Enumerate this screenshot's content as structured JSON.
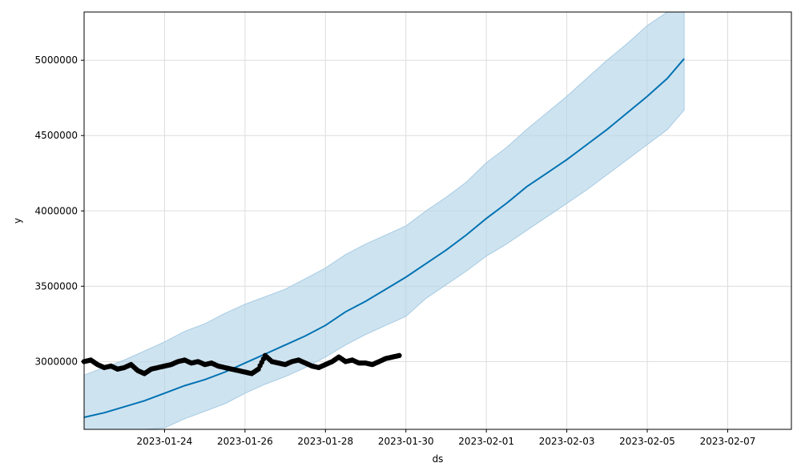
{
  "chart_data": {
    "type": "line",
    "title": "",
    "xlabel": "ds",
    "ylabel": "y",
    "x_axis_type": "date",
    "xlim": [
      "2023-01-22T00:00",
      "2023-02-08T14:00"
    ],
    "ylim": [
      2550000,
      5320000
    ],
    "grid": true,
    "legend": "none",
    "x_ticks": [
      "2023-01-24",
      "2023-01-26",
      "2023-01-28",
      "2023-01-30",
      "2023-02-01",
      "2023-02-03",
      "2023-02-05",
      "2023-02-07"
    ],
    "y_ticks": [
      3000000,
      3500000,
      4000000,
      4500000,
      5000000
    ],
    "colors": {
      "forecast_line": "#0072B2",
      "uncertainty_band": "#b3d4e8",
      "observed_points": "#000000",
      "grid": "#dddddd"
    },
    "series": [
      {
        "role": "forecast",
        "x": [
          "2023-01-22T00:00",
          "2023-01-22T12:00",
          "2023-01-23T00:00",
          "2023-01-23T12:00",
          "2023-01-24T00:00",
          "2023-01-24T12:00",
          "2023-01-25T00:00",
          "2023-01-25T12:00",
          "2023-01-26T00:00",
          "2023-01-26T12:00",
          "2023-01-27T00:00",
          "2023-01-27T12:00",
          "2023-01-28T00:00",
          "2023-01-28T12:00",
          "2023-01-29T00:00",
          "2023-01-29T12:00",
          "2023-01-30T00:00",
          "2023-01-30T12:00",
          "2023-01-31T00:00",
          "2023-01-31T12:00",
          "2023-02-01T00:00",
          "2023-02-01T12:00",
          "2023-02-02T00:00",
          "2023-02-02T12:00",
          "2023-02-03T00:00",
          "2023-02-03T12:00",
          "2023-02-04T00:00",
          "2023-02-04T12:00",
          "2023-02-05T00:00",
          "2023-02-05T12:00",
          "2023-02-05T22:00"
        ],
        "values": [
          2630000,
          2660000,
          2700000,
          2740000,
          2790000,
          2840000,
          2880000,
          2930000,
          2990000,
          3050000,
          3110000,
          3170000,
          3240000,
          3330000,
          3400000,
          3480000,
          3560000,
          3650000,
          3740000,
          3840000,
          3950000,
          4050000,
          4160000,
          4250000,
          4340000,
          4440000,
          4540000,
          4650000,
          4760000,
          4880000,
          5010000
        ],
        "lower": [
          2330000,
          2390000,
          2450000,
          2510000,
          2560000,
          2620000,
          2670000,
          2720000,
          2790000,
          2850000,
          2900000,
          2960000,
          3030000,
          3110000,
          3180000,
          3240000,
          3300000,
          3420000,
          3510000,
          3600000,
          3700000,
          3780000,
          3870000,
          3960000,
          4050000,
          4140000,
          4240000,
          4340000,
          4440000,
          4540000,
          4670000
        ],
        "upper": [
          2910000,
          2960000,
          3010000,
          3070000,
          3130000,
          3200000,
          3250000,
          3320000,
          3380000,
          3430000,
          3480000,
          3550000,
          3620000,
          3710000,
          3780000,
          3840000,
          3900000,
          4000000,
          4090000,
          4190000,
          4320000,
          4420000,
          4540000,
          4650000,
          4760000,
          4880000,
          5000000,
          5110000,
          5230000,
          5350000,
          5500000
        ]
      },
      {
        "role": "observed",
        "x": [
          "2023-01-22T00:00",
          "2023-01-22T04:00",
          "2023-01-22T08:00",
          "2023-01-22T12:00",
          "2023-01-22T16:00",
          "2023-01-22T20:00",
          "2023-01-23T00:00",
          "2023-01-23T04:00",
          "2023-01-23T08:00",
          "2023-01-23T12:00",
          "2023-01-23T16:00",
          "2023-01-23T20:00",
          "2023-01-24T00:00",
          "2023-01-24T04:00",
          "2023-01-24T08:00",
          "2023-01-24T12:00",
          "2023-01-24T16:00",
          "2023-01-24T20:00",
          "2023-01-25T00:00",
          "2023-01-25T04:00",
          "2023-01-25T08:00",
          "2023-01-25T12:00",
          "2023-01-25T16:00",
          "2023-01-25T20:00",
          "2023-01-26T00:00",
          "2023-01-26T04:00",
          "2023-01-26T08:00",
          "2023-01-26T12:00",
          "2023-01-26T16:00",
          "2023-01-26T20:00",
          "2023-01-27T00:00",
          "2023-01-27T04:00",
          "2023-01-27T08:00",
          "2023-01-27T12:00",
          "2023-01-27T16:00",
          "2023-01-27T20:00",
          "2023-01-28T00:00",
          "2023-01-28T04:00",
          "2023-01-28T08:00",
          "2023-01-28T12:00",
          "2023-01-28T16:00",
          "2023-01-28T20:00",
          "2023-01-29T00:00",
          "2023-01-29T04:00",
          "2023-01-29T08:00",
          "2023-01-29T12:00",
          "2023-01-29T16:00",
          "2023-01-29T20:00"
        ],
        "values": [
          3000000,
          3010000,
          2980000,
          2960000,
          2970000,
          2950000,
          2960000,
          2980000,
          2940000,
          2920000,
          2950000,
          2960000,
          2970000,
          2980000,
          3000000,
          3010000,
          2990000,
          3000000,
          2980000,
          2990000,
          2970000,
          2960000,
          2950000,
          2940000,
          2930000,
          2920000,
          2950000,
          3040000,
          3000000,
          2990000,
          2980000,
          3000000,
          3010000,
          2990000,
          2970000,
          2960000,
          2980000,
          3000000,
          3030000,
          3000000,
          3010000,
          2990000,
          2990000,
          2980000,
          3000000,
          3020000,
          3030000,
          3040000
        ]
      }
    ]
  }
}
